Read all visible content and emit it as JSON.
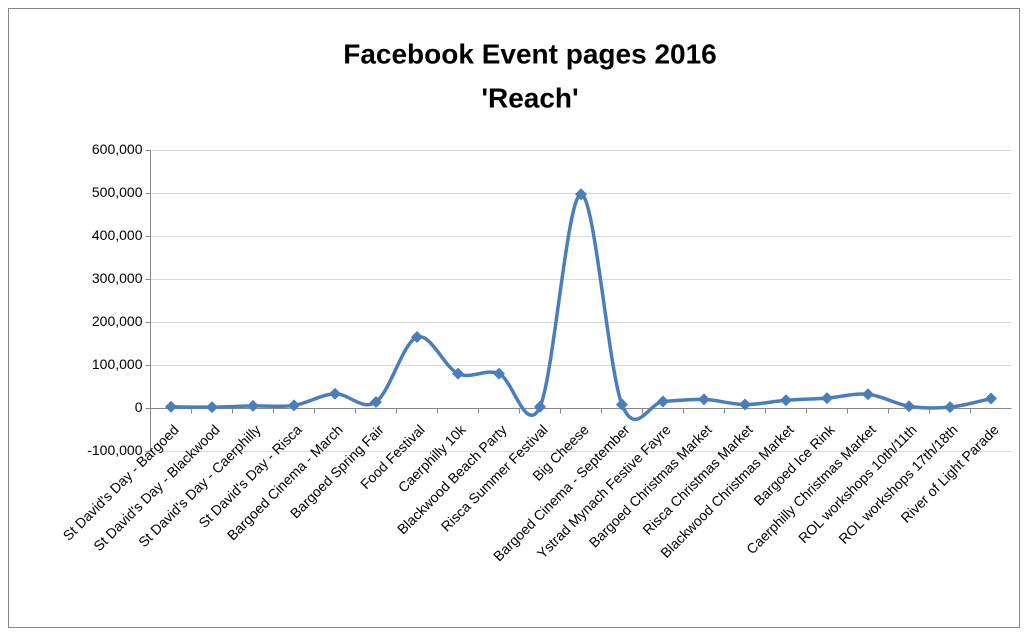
{
  "chart_data": {
    "type": "line",
    "title": [
      "Facebook Event pages 2016",
      "'Reach'"
    ],
    "categories": [
      "St David's Day - Bargoed",
      "St David's Day - Blackwood",
      "St David's Day - Caerphilly",
      "St David's Day - Risca",
      "Bargoed Cinema - March",
      "Bargoed Spring Fair",
      "Food Festival",
      "Caerphilly 10k",
      "Blackwood Beach Party",
      "Risca Summer Festival",
      "Big Cheese",
      "Bargoed Cinema - September",
      "Ystrad Mynach Festive Fayre",
      "Bargoed Christmas Market",
      "Risca Christmas Market",
      "Blackwood Christmas Market",
      "Bargoed Ice Rink",
      "Caerphilly Christmas Market",
      "ROL workshops 10th/11th",
      "ROL workshops 17th/18th",
      "River of Light Parade"
    ],
    "values": [
      3000,
      2000,
      5000,
      6000,
      33000,
      14000,
      165000,
      80000,
      80000,
      3000,
      497000,
      8000,
      15000,
      20000,
      8000,
      18000,
      23000,
      32000,
      4000,
      2000,
      22000
    ],
    "color": "#4a7ebb",
    "smooth": true,
    "ylim": [
      -100000,
      600000
    ],
    "yticks": [
      {
        "value": -100000,
        "label": "-100,000"
      },
      0,
      {
        "value": 100000,
        "label": "100,000"
      },
      {
        "value": 200000,
        "label": "200,000"
      },
      {
        "value": 300000,
        "label": "300,000"
      },
      {
        "value": 400000,
        "label": "400,000"
      },
      {
        "value": 500000,
        "label": "500,000"
      },
      {
        "value": 600000,
        "label": "600,000"
      }
    ],
    "grid": true
  }
}
